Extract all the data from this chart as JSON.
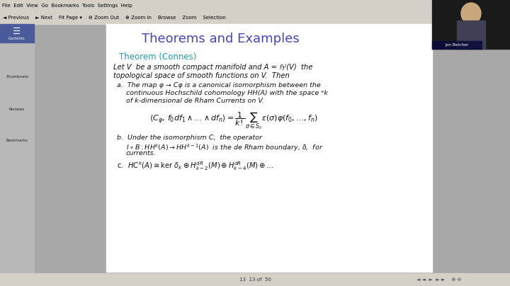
{
  "bg_color": "#a8a8a8",
  "toolbar_color": "#d4d0c8",
  "sidebar_color": "#c0c0c0",
  "page_bg": "#ffffff",
  "title_color": "#4444bb",
  "theorem_color": "#2299aa",
  "text_color": "#111111",
  "title_text": "Theorems and Examples",
  "theorem_label": "Theorem (Connes)",
  "page_number": "13  13 of  50",
  "name_overlay": "Jon Belcher",
  "sidebar_items": [
    "Contents",
    "Thumbnails",
    "Reviews",
    "Bookmarks"
  ]
}
